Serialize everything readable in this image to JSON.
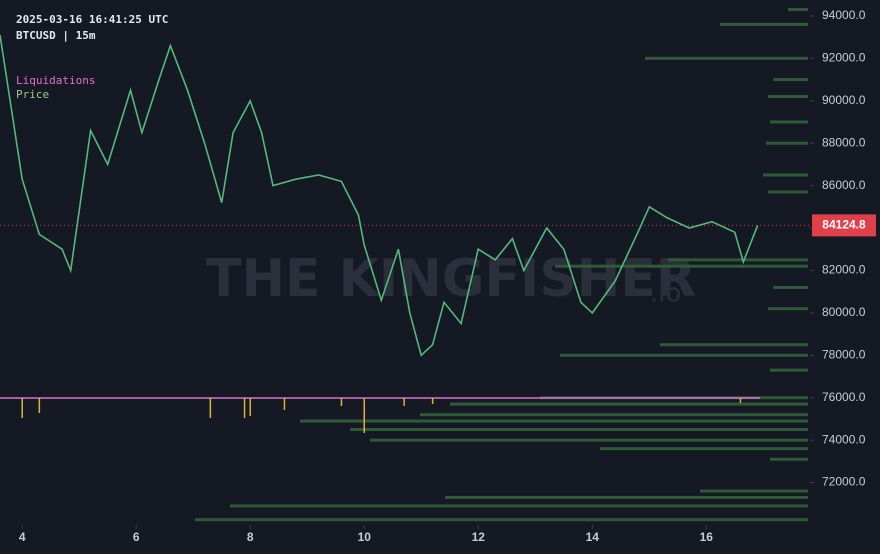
{
  "chart_data": {
    "type": "line",
    "timestamp": "2025-03-16 16:41:25 UTC",
    "symbol": "BTCUSD | 15m",
    "watermark": "THE KINGFISHER",
    "watermark_suffix": ".io",
    "xlim": [
      3.61,
      17.82
    ],
    "xticks": [
      4,
      6,
      8,
      10,
      12,
      14,
      16
    ],
    "ylim": [
      70000,
      94750
    ],
    "yticks": [
      {
        "value": 72000,
        "label": "72000.0"
      },
      {
        "value": 74000,
        "label": "74000.0"
      },
      {
        "value": 76000,
        "label": "76000.0"
      },
      {
        "value": 78000,
        "label": "78000.0"
      },
      {
        "value": 80000,
        "label": "80000.0"
      },
      {
        "value": 82000,
        "label": "82000.0"
      },
      {
        "value": 84000,
        "label": "84000.0"
      },
      {
        "value": 86000,
        "label": "86000.0"
      },
      {
        "value": 88000,
        "label": "88000.0"
      },
      {
        "value": 90000,
        "label": "90000.0"
      },
      {
        "value": 92000,
        "label": "92000.0"
      },
      {
        "value": 94000,
        "label": "94000.0"
      }
    ],
    "last_price": 84124.8,
    "last_price_color": "#e0404a",
    "series": [
      {
        "name": "Price",
        "color": "#55b87a",
        "x": [
          3.61,
          4.0,
          4.3,
          4.7,
          4.85,
          5.2,
          5.5,
          5.9,
          6.1,
          6.4,
          6.6,
          6.9,
          7.2,
          7.5,
          7.7,
          8.0,
          8.2,
          8.4,
          8.8,
          9.2,
          9.6,
          9.9,
          10.0,
          10.3,
          10.6,
          10.8,
          11.0,
          11.2,
          11.4,
          11.7,
          12.0,
          12.3,
          12.6,
          12.8,
          13.2,
          13.5,
          13.8,
          14.0,
          14.4,
          14.8,
          15.0,
          15.3,
          15.7,
          16.1,
          16.5,
          16.65,
          16.9
        ],
        "values": [
          93100,
          86300,
          83700,
          83000,
          82000,
          88600,
          87000,
          90500,
          88500,
          91000,
          92600,
          90500,
          88000,
          85200,
          88500,
          90000,
          88500,
          86000,
          86300,
          86500,
          86200,
          84600,
          83200,
          80600,
          83000,
          80000,
          78000,
          78500,
          80500,
          79500,
          83000,
          82500,
          83500,
          82000,
          84000,
          83000,
          80500,
          80000,
          81500,
          83800,
          85000,
          84500,
          84000,
          84300,
          83800,
          82400,
          84124.8
        ]
      },
      {
        "name": "Liquidations",
        "color": "#e070d0",
        "x": [
          4.0,
          4.3,
          7.3,
          7.9,
          8.0,
          8.6,
          9.6,
          10.0,
          10.7,
          11.2,
          16.6
        ],
        "values": [
          20,
          15,
          20,
          20,
          18,
          12,
          8,
          35,
          8,
          6,
          5
        ]
      }
    ],
    "profile": {
      "color": "#2f5a38",
      "levels": [
        94300,
        93600,
        92000,
        91000,
        90200,
        89000,
        88000,
        86500,
        85700,
        82500,
        82200,
        81200,
        80200,
        78500,
        78000,
        77300,
        76000,
        75700,
        75200,
        74900,
        74500,
        74000,
        73600,
        73100,
        71600,
        71300,
        70900,
        70250
      ],
      "values": [
        20,
        88,
        163,
        35,
        40,
        38,
        42,
        45,
        40,
        140,
        253,
        35,
        40,
        148,
        248,
        38,
        268,
        358,
        388,
        508,
        458,
        438,
        208,
        38,
        108,
        363,
        578,
        613
      ]
    }
  }
}
